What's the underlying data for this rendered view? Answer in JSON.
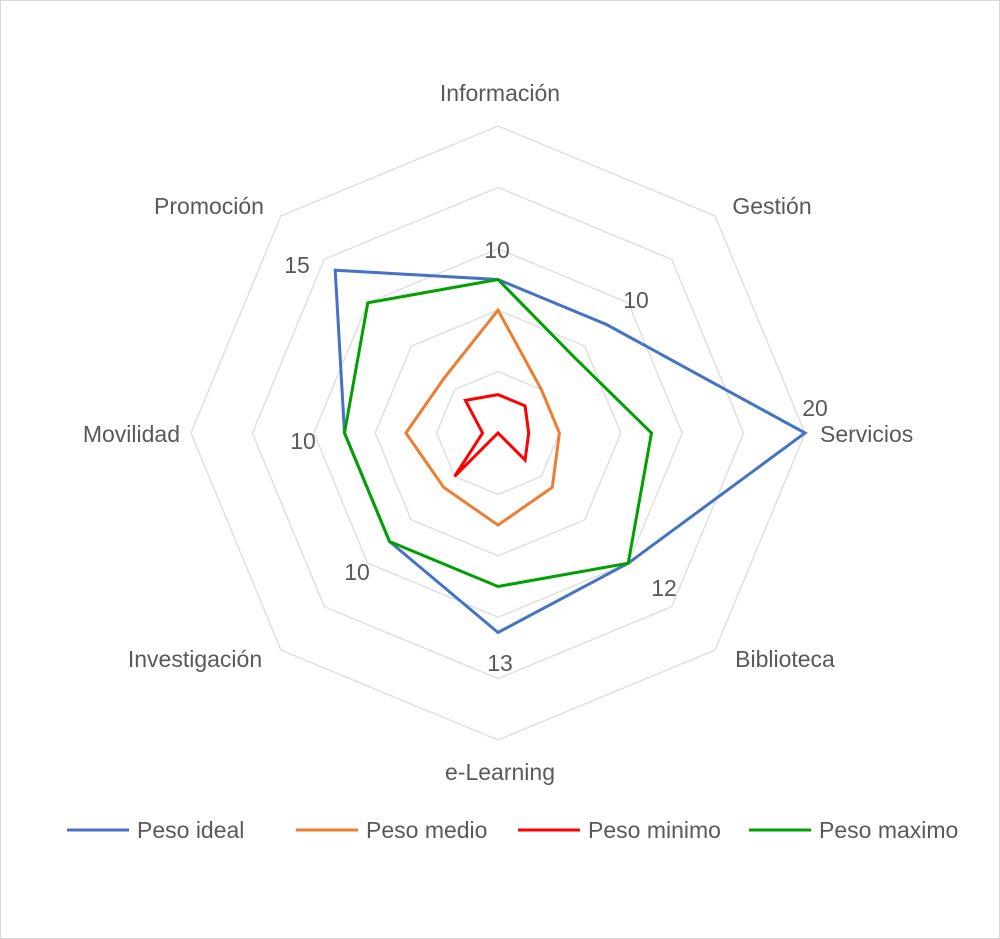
{
  "chart_data": {
    "type": "radar",
    "title": "",
    "axes": [
      "Información",
      "Gestión",
      "Servicios",
      "Biblioteca",
      "e-Learning",
      "Investigación",
      "Movilidad",
      "Promoción"
    ],
    "rmax": 20,
    "grid_levels": [
      4,
      8,
      12,
      16,
      20
    ],
    "grid": true,
    "legend_position": "bottom",
    "series": [
      {
        "name": "Peso ideal",
        "color": "#4472c4",
        "values": [
          10,
          10,
          20,
          12,
          13,
          10,
          10,
          15
        ]
      },
      {
        "name": "Peso medio",
        "color": "#ed7d31",
        "values": [
          8,
          4,
          4,
          5,
          6,
          5,
          6,
          5
        ]
      },
      {
        "name": "Peso minimo",
        "color": "#ff0000",
        "values": [
          2.5,
          2.5,
          2,
          2.5,
          0,
          4,
          1,
          3
        ]
      },
      {
        "name": "Peso maximo",
        "color": "#00a000",
        "values": [
          10,
          7,
          10,
          12,
          10,
          10,
          10,
          12
        ]
      }
    ],
    "data_labels": [
      {
        "axis": 0,
        "text": "10"
      },
      {
        "axis": 1,
        "text": "10"
      },
      {
        "axis": 2,
        "text": "20"
      },
      {
        "axis": 3,
        "text": "12"
      },
      {
        "axis": 4,
        "text": "13"
      },
      {
        "axis": 5,
        "text": "10"
      },
      {
        "axis": 6,
        "text": "10"
      },
      {
        "axis": 7,
        "text": "15"
      }
    ]
  }
}
